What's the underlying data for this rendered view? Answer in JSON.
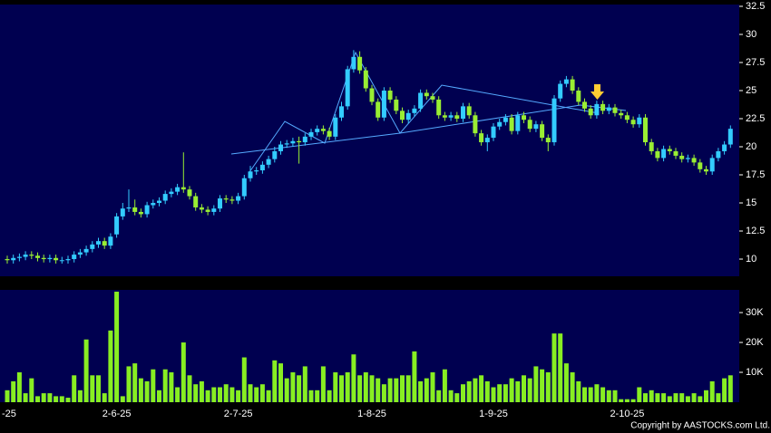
{
  "chart_data": {
    "type": "candlestick",
    "categories": [
      "-25",
      null,
      null,
      null,
      null,
      null,
      null,
      null,
      null,
      null,
      null,
      null,
      null,
      null,
      null,
      null,
      null,
      null,
      "2-6-25",
      null,
      null,
      null,
      null,
      null,
      null,
      null,
      null,
      null,
      null,
      null,
      null,
      null,
      null,
      null,
      null,
      null,
      null,
      null,
      "2-7-25",
      null,
      null,
      null,
      null,
      null,
      null,
      null,
      null,
      null,
      null,
      null,
      null,
      null,
      null,
      null,
      null,
      null,
      null,
      null,
      null,
      null,
      "1-8-25",
      null,
      null,
      null,
      null,
      null,
      null,
      null,
      null,
      null,
      null,
      null,
      null,
      null,
      null,
      null,
      null,
      null,
      null,
      null,
      "1-9-25",
      null,
      null,
      null,
      null,
      null,
      null,
      null,
      null,
      null,
      null,
      null,
      null,
      null,
      null,
      null,
      null,
      null,
      null,
      null,
      null,
      null,
      "2-10-25",
      null,
      null,
      null,
      null,
      null,
      null,
      null,
      null,
      null,
      null,
      null,
      null,
      null,
      null,
      null,
      null,
      null
    ],
    "open": [
      10.0,
      9.9,
      10.1,
      10.2,
      10.4,
      10.3,
      10.1,
      10.0,
      10.1,
      9.9,
      9.9,
      10.0,
      10.4,
      10.6,
      10.9,
      11.3,
      11.6,
      11.2,
      12.2,
      13.8,
      14.5,
      14.6,
      14.2,
      14.0,
      14.8,
      15.0,
      15.2,
      15.8,
      16.0,
      16.4,
      16.2,
      15.6,
      14.6,
      14.4,
      14.2,
      14.5,
      15.4,
      15.3,
      15.2,
      15.6,
      17.2,
      17.8,
      17.9,
      18.4,
      18.9,
      19.6,
      20.2,
      20.3,
      20.5,
      20.4,
      20.9,
      21.3,
      21.6,
      21.4,
      20.9,
      22.6,
      23.6,
      26.9,
      28.0,
      26.8,
      25.2,
      24.0,
      22.6,
      25.0,
      24.2,
      23.2,
      22.4,
      23.0,
      23.4,
      24.8,
      24.5,
      24.2,
      22.8,
      22.6,
      22.8,
      22.5,
      23.6,
      22.8,
      21.2,
      20.4,
      20.8,
      21.8,
      22.2,
      22.6,
      21.4,
      22.8,
      22.4,
      21.6,
      22.0,
      20.8,
      20.4,
      24.3,
      25.6,
      26.0,
      25.0,
      24.0,
      23.4,
      22.8,
      23.8,
      23.2,
      23.5,
      23.0,
      22.8,
      22.4,
      22.0,
      22.6,
      20.4,
      19.6,
      19.0,
      19.8,
      19.6,
      19.2,
      18.9,
      19.0,
      18.6,
      18.0,
      17.8,
      19.0,
      19.6,
      20.2
    ],
    "high": [
      10.3,
      10.4,
      10.5,
      10.7,
      10.7,
      10.6,
      10.4,
      10.4,
      10.4,
      10.2,
      10.3,
      10.7,
      10.9,
      11.2,
      11.6,
      11.9,
      11.9,
      12.3,
      14.1,
      15.0,
      16.2,
      15.3,
      14.5,
      15.1,
      15.3,
      15.5,
      16.1,
      16.3,
      16.7,
      19.5,
      16.5,
      15.9,
      14.9,
      14.7,
      14.8,
      15.7,
      15.7,
      15.6,
      15.9,
      17.5,
      18.3,
      18.2,
      18.7,
      19.2,
      20.0,
      20.5,
      20.6,
      20.8,
      20.9,
      21.2,
      21.6,
      21.9,
      21.9,
      21.7,
      22.9,
      24.0,
      27.2,
      28.6,
      28.5,
      27.1,
      25.5,
      24.3,
      25.3,
      25.3,
      24.5,
      23.5,
      23.3,
      23.7,
      25.1,
      25.1,
      24.8,
      24.5,
      23.1,
      23.1,
      23.1,
      23.9,
      23.9,
      23.1,
      21.5,
      21.1,
      22.1,
      22.5,
      22.9,
      22.9,
      23.1,
      23.1,
      22.7,
      22.3,
      22.3,
      21.1,
      24.6,
      25.9,
      26.3,
      26.3,
      25.3,
      24.3,
      23.7,
      24.1,
      24.1,
      23.8,
      23.8,
      23.3,
      23.1,
      22.7,
      22.9,
      22.9,
      20.7,
      19.9,
      20.1,
      20.1,
      19.9,
      19.5,
      19.3,
      19.3,
      18.9,
      18.3,
      19.3,
      19.9,
      20.5,
      21.9
    ],
    "low": [
      9.6,
      9.6,
      9.8,
      9.9,
      10.0,
      9.8,
      9.7,
      9.7,
      9.6,
      9.6,
      9.6,
      9.7,
      10.1,
      10.3,
      10.6,
      11.0,
      10.9,
      10.9,
      11.9,
      13.5,
      14.2,
      13.9,
      13.7,
      13.7,
      14.5,
      14.7,
      14.9,
      15.5,
      15.7,
      15.9,
      15.3,
      14.3,
      14.1,
      13.9,
      13.9,
      14.2,
      15.0,
      14.9,
      14.9,
      15.3,
      16.9,
      17.5,
      17.6,
      18.1,
      18.6,
      19.3,
      19.9,
      20.0,
      18.5,
      20.1,
      20.6,
      21.0,
      21.1,
      20.6,
      20.6,
      22.3,
      23.3,
      26.6,
      26.5,
      24.9,
      23.7,
      22.3,
      22.3,
      23.9,
      22.9,
      22.1,
      22.1,
      22.7,
      23.1,
      24.2,
      23.9,
      22.5,
      22.3,
      22.3,
      22.2,
      22.2,
      22.5,
      20.9,
      20.1,
      19.6,
      20.5,
      21.5,
      21.9,
      21.1,
      21.1,
      22.1,
      21.3,
      21.3,
      20.5,
      19.6,
      20.1,
      24.0,
      25.3,
      24.7,
      23.7,
      23.1,
      22.5,
      22.5,
      22.9,
      22.9,
      22.7,
      22.5,
      22.1,
      21.7,
      21.7,
      20.1,
      19.3,
      18.7,
      18.7,
      19.3,
      18.9,
      18.6,
      18.6,
      18.3,
      17.7,
      17.5,
      17.5,
      18.7,
      19.3,
      19.9
    ],
    "close": [
      9.9,
      10.1,
      10.2,
      10.4,
      10.3,
      10.1,
      10.0,
      10.1,
      9.9,
      9.9,
      10.0,
      10.4,
      10.6,
      10.9,
      11.3,
      11.6,
      11.2,
      12.0,
      13.8,
      14.5,
      14.6,
      14.2,
      14.0,
      14.8,
      15.0,
      15.2,
      15.8,
      16.0,
      16.4,
      16.2,
      15.6,
      14.6,
      14.4,
      14.2,
      14.5,
      15.4,
      15.3,
      15.2,
      15.6,
      17.2,
      17.8,
      17.9,
      18.4,
      18.9,
      19.6,
      20.2,
      20.3,
      20.5,
      20.4,
      20.9,
      21.3,
      21.6,
      21.4,
      20.9,
      22.6,
      23.6,
      26.9,
      28.0,
      26.8,
      25.2,
      24.0,
      22.6,
      25.0,
      24.2,
      23.2,
      22.4,
      23.0,
      23.4,
      24.8,
      24.5,
      24.2,
      22.8,
      22.6,
      22.8,
      22.5,
      23.6,
      22.8,
      21.2,
      20.4,
      20.8,
      21.8,
      22.2,
      22.6,
      21.4,
      22.8,
      22.4,
      21.6,
      22.0,
      20.8,
      20.4,
      24.3,
      25.6,
      26.0,
      25.0,
      24.0,
      23.4,
      22.8,
      23.8,
      23.2,
      23.5,
      23.0,
      22.8,
      22.4,
      22.0,
      22.6,
      20.4,
      19.6,
      19.0,
      19.8,
      19.6,
      19.2,
      18.9,
      19.0,
      18.6,
      18.0,
      17.8,
      19.0,
      19.6,
      20.2,
      21.6
    ],
    "volume": [
      4000,
      7000,
      10000,
      3000,
      8000,
      2000,
      3000,
      3000,
      2000,
      2000,
      1500,
      9000,
      4000,
      21000,
      9000,
      9000,
      3000,
      24000,
      37000,
      2000,
      12000,
      13000,
      8000,
      7000,
      11000,
      4000,
      11000,
      10000,
      5000,
      20000,
      9000,
      6000,
      7000,
      4000,
      5000,
      5000,
      6000,
      5000,
      4000,
      15000,
      6000,
      5000,
      6000,
      4000,
      14000,
      13000,
      8000,
      10000,
      9000,
      12000,
      4000,
      4000,
      12000,
      4000,
      10000,
      9000,
      10000,
      16000,
      9000,
      10000,
      9000,
      8000,
      6000,
      8000,
      8000,
      9000,
      9000,
      17000,
      7000,
      8000,
      10000,
      4000,
      11000,
      4000,
      3000,
      6000,
      7000,
      8000,
      9000,
      7000,
      5000,
      6000,
      6000,
      8000,
      7000,
      9000,
      8000,
      12000,
      11000,
      10000,
      23000,
      23000,
      13000,
      10000,
      7000,
      5000,
      5000,
      6000,
      5000,
      4000,
      4000,
      1000,
      1000,
      1000,
      5000,
      3000,
      4000,
      3000,
      3000,
      2000,
      3000,
      3000,
      2000,
      3000,
      2000,
      4000,
      7000,
      3000,
      8000,
      9000
    ],
    "up_color": "#33ccff",
    "down_color": "#99ee33",
    "volume_color": "#88ee22",
    "ylim": [
      8.47,
      32.66
    ],
    "yticks": [
      10,
      12.5,
      15,
      17.5,
      20,
      22.5,
      25,
      27.5,
      30,
      32.5
    ],
    "volume_ylim": [
      0,
      37600
    ],
    "volume_ticks": [
      {
        "value": 10000,
        "label": "10K"
      },
      {
        "value": 20000,
        "label": "20K"
      },
      {
        "value": 30000,
        "label": "30K"
      }
    ],
    "copyright": "Copyright by AASTOCKS.com Ltd."
  }
}
